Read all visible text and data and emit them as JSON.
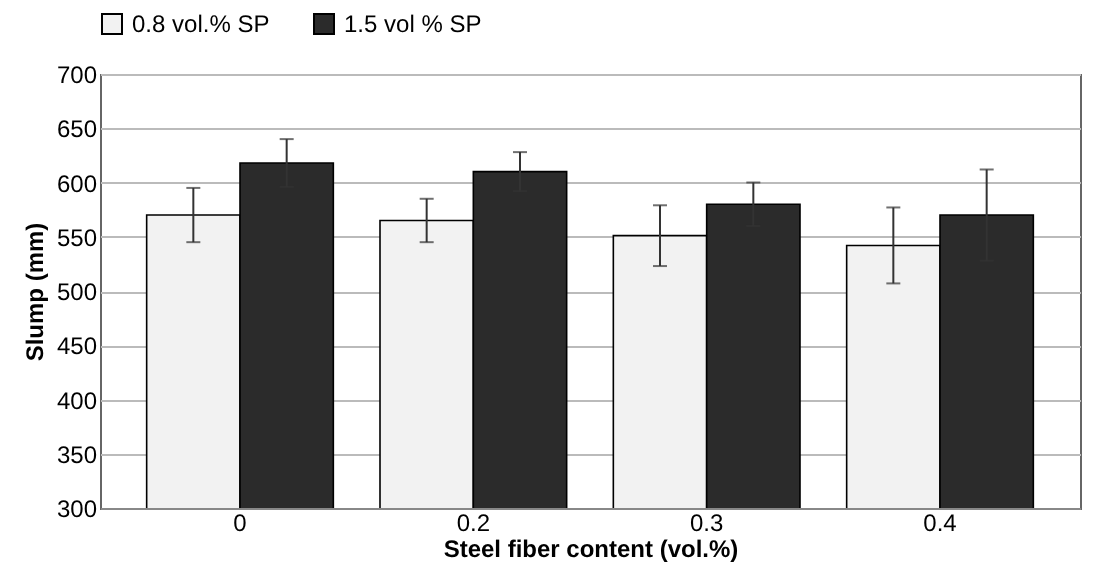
{
  "chart_data": {
    "type": "bar",
    "xlabel": "Steel fiber content (vol.%)",
    "ylabel": "Slump (mm)",
    "categories": [
      "0",
      "0.2",
      "0.3",
      "0.4"
    ],
    "series": [
      {
        "name": "0.8 vol.% SP",
        "color": "#f2f2f2",
        "values": [
          570,
          565,
          551,
          542
        ],
        "errors": [
          25,
          20,
          28,
          35
        ]
      },
      {
        "name": "1.5 vol % SP",
        "color": "#2b2b2b",
        "values": [
          618,
          610,
          580,
          570
        ],
        "errors": [
          22,
          18,
          20,
          42
        ]
      }
    ],
    "ylim": [
      300,
      700
    ],
    "yticks": [
      300,
      350,
      400,
      450,
      500,
      550,
      600,
      650,
      700
    ],
    "grid": "y",
    "legend": "top"
  }
}
